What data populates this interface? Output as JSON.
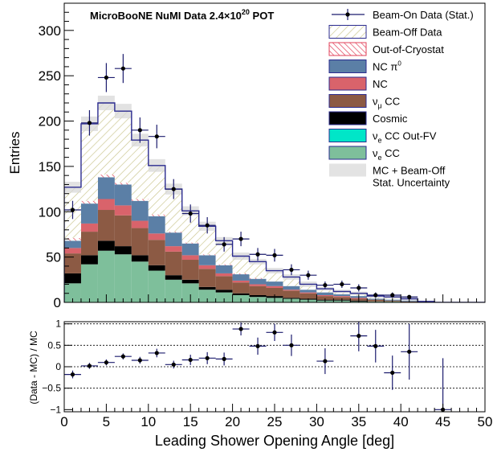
{
  "chart_data": [
    {
      "type": "bar",
      "subtype": "stacked-histogram",
      "title_main": "MicroBooNE NuMI Data 2.4",
      "title_times": "×",
      "title_mant": "10",
      "title_exp": "20",
      "title_pot": " POT",
      "ylabel": "Entries",
      "xlim": [
        0,
        50
      ],
      "ylim": [
        0,
        330
      ],
      "bin_width": 2,
      "bin_edges": [
        0,
        2,
        4,
        6,
        8,
        10,
        12,
        14,
        16,
        18,
        20,
        22,
        24,
        26,
        28,
        30,
        32,
        34,
        36,
        38,
        40,
        42,
        44,
        46,
        48,
        50
      ],
      "x_ticks": [
        0,
        5,
        10,
        15,
        20,
        25,
        30,
        35,
        40,
        45,
        50
      ],
      "y_ticks": [
        0,
        50,
        100,
        150,
        200,
        250,
        300
      ],
      "stack_order": [
        "nue_cc",
        "nue_out_fv",
        "cosmic",
        "numu_cc",
        "nc",
        "nc_pi0",
        "out_of_cryostat",
        "beam_off"
      ],
      "series": {
        "nue_cc": {
          "name": "ν",
          "sub": "e",
          "rest": " CC",
          "color": "#7ebf9b",
          "values": [
            21,
            42,
            57,
            53,
            45,
            35,
            25,
            21,
            14,
            11,
            8,
            6,
            5,
            4,
            3,
            2,
            2,
            1,
            1,
            1,
            0,
            0,
            0,
            0,
            0
          ]
        },
        "nue_out_fv": {
          "name": "ν",
          "sub": "e",
          "rest": " CC Out-FV",
          "color": "#00e6c8",
          "values": [
            0,
            0,
            0,
            0,
            0,
            0,
            0,
            0,
            0,
            0,
            0,
            0,
            0,
            0,
            0,
            0,
            0,
            0,
            0,
            0,
            0,
            0,
            0,
            0,
            0
          ]
        },
        "cosmic": {
          "name": "Cosmic",
          "color": "#000000",
          "values": [
            11,
            10,
            11,
            9,
            7,
            6,
            5,
            4,
            3,
            3,
            2,
            2,
            2,
            1,
            1,
            1,
            1,
            1,
            0,
            0,
            0,
            0,
            0,
            0,
            0
          ]
        },
        "numu_cc": {
          "name": "ν",
          "sub": "μ",
          "rest": " CC",
          "color": "#8c5a44",
          "values": [
            22,
            26,
            34,
            34,
            30,
            28,
            26,
            22,
            20,
            15,
            12,
            10,
            9,
            8,
            6,
            4,
            3,
            2,
            2,
            1,
            1,
            1,
            0,
            0,
            0
          ]
        },
        "nc": {
          "name": "NC",
          "color": "#d9636b",
          "values": [
            6,
            9,
            12,
            11,
            8,
            7,
            6,
            5,
            4,
            3,
            2,
            2,
            2,
            1,
            1,
            1,
            1,
            1,
            0,
            0,
            0,
            0,
            0,
            0,
            0
          ]
        },
        "nc_pi0": {
          "name": "NC π",
          "sup": "0",
          "color": "#5b7fa6",
          "values": [
            8,
            22,
            24,
            23,
            22,
            19,
            15,
            13,
            11,
            9,
            7,
            6,
            5,
            4,
            3,
            3,
            2,
            2,
            1,
            1,
            1,
            0,
            0,
            0,
            0
          ]
        },
        "out_of_cryostat": {
          "name": "Out-of-Cryostat",
          "color": "#e2415a",
          "values": [
            3,
            3,
            3,
            2,
            2,
            2,
            1,
            1,
            1,
            1,
            1,
            1,
            0,
            0,
            0,
            0,
            0,
            0,
            0,
            0,
            0,
            0,
            0,
            0,
            0
          ]
        },
        "beam_off": {
          "name": "Beam-Off Data",
          "color": "#e8e6b8",
          "values": [
            56,
            85,
            79,
            79,
            65,
            54,
            47,
            35,
            31,
            26,
            19,
            18,
            12,
            10,
            6,
            4,
            3,
            3,
            3,
            3,
            2,
            0,
            0,
            0,
            0
          ]
        }
      },
      "mc_unc": [
        6,
        8,
        8,
        8,
        7,
        7,
        6,
        5,
        5,
        4,
        4,
        3,
        3,
        3,
        3,
        2,
        2,
        2,
        2,
        2,
        2,
        1,
        1,
        1,
        1
      ],
      "data": {
        "name": "Beam-On Data (Stat.)",
        "x": [
          1,
          3,
          5,
          7,
          9,
          11,
          13,
          15,
          17,
          19,
          21,
          23,
          25,
          27,
          29,
          31,
          33,
          35,
          37,
          39,
          41
        ],
        "y": [
          102,
          198,
          248,
          258,
          190,
          183,
          125,
          98,
          85,
          64,
          70,
          53,
          52,
          36,
          30,
          19,
          20,
          16,
          8,
          8,
          6
        ],
        "yerr": [
          10,
          14,
          16,
          16,
          14,
          13,
          11,
          10,
          9,
          8,
          8,
          7,
          7,
          6,
          5,
          4,
          4,
          4,
          3,
          3,
          2
        ]
      },
      "legend": [
        {
          "key": "data",
          "label": "Beam-On Data (Stat.)"
        },
        {
          "key": "beam_off",
          "label": "Beam-Off Data"
        },
        {
          "key": "out_of_cryostat",
          "label": "Out-of-Cryostat"
        },
        {
          "key": "nc_pi0",
          "label": "NC π",
          "sup": "0"
        },
        {
          "key": "nc",
          "label": "NC"
        },
        {
          "key": "numu_cc",
          "label": "ν",
          "sub": "μ",
          "rest": " CC"
        },
        {
          "key": "cosmic",
          "label": "Cosmic"
        },
        {
          "key": "nue_out_fv",
          "label": "ν",
          "sub": "e",
          "rest": " CC Out-FV"
        },
        {
          "key": "nue_cc",
          "label": "ν",
          "sub": "e",
          "rest": " CC"
        },
        {
          "key": "unc",
          "label": "MC + Beam-Off",
          "label2": "Stat. Uncertainty",
          "color": "#e3e3e3"
        }
      ]
    },
    {
      "type": "scatter",
      "subtype": "ratio",
      "ylabel": "(Data - MC) / MC",
      "xlabel": "Leading Shower Opening Angle [deg]",
      "xlim": [
        0,
        50
      ],
      "ylim": [
        -1.05,
        1.05
      ],
      "x_ticks": [
        0,
        5,
        10,
        15,
        20,
        25,
        30,
        35,
        40,
        45,
        50
      ],
      "y_ticks": [
        -1,
        -0.5,
        0,
        0.5,
        1
      ],
      "y_tick_labels": [
        "−1",
        "−0.5",
        "0",
        "0.5",
        "1"
      ],
      "dashed_lines": [
        -0.5,
        0.5,
        1
      ],
      "solid_line": 0,
      "x": [
        1,
        3,
        5,
        7,
        9,
        11,
        13,
        15,
        17,
        19,
        21,
        23,
        25,
        27,
        31,
        35,
        37,
        39,
        41,
        45
      ],
      "y": [
        -0.18,
        0.02,
        0.1,
        0.24,
        0.15,
        0.32,
        0.05,
        0.16,
        0.2,
        0.18,
        0.88,
        0.48,
        0.8,
        0.5,
        0.13,
        0.72,
        0.48,
        -0.14,
        0.35,
        -1.0
      ],
      "yerr": [
        0.09,
        0.07,
        0.07,
        0.07,
        0.08,
        0.1,
        0.09,
        0.12,
        0.14,
        0.15,
        0.15,
        0.2,
        0.2,
        0.25,
        0.3,
        0.36,
        0.38,
        0.4,
        0.65,
        1.2
      ]
    }
  ]
}
